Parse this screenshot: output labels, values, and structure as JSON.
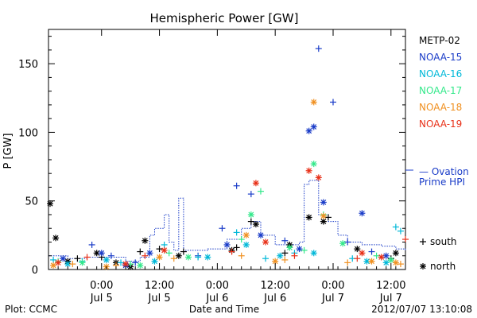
{
  "chart_data": {
    "type": "scatter",
    "title": "Hemispheric Power [GW]",
    "ylabel": "P [GW]",
    "xlabel": "Date and Time",
    "ylim": [
      0,
      175
    ],
    "yticks": [
      0,
      50,
      100,
      150
    ],
    "xlim": [
      "2012-07-04T13:00",
      "2012-07-07T15:00"
    ],
    "xticks": [
      {
        "at": "2012-07-05T00:00",
        "time": "0:00",
        "date": "Jul 5"
      },
      {
        "at": "2012-07-05T12:00",
        "time": "12:00",
        "date": "Jul 5"
      },
      {
        "at": "2012-07-06T00:00",
        "time": "0:00",
        "date": "Jul 6"
      },
      {
        "at": "2012-07-06T12:00",
        "time": "12:00",
        "date": "Jul 6"
      },
      {
        "at": "2012-07-07T00:00",
        "time": "0:00",
        "date": "Jul 7"
      },
      {
        "at": "2012-07-07T12:00",
        "time": "12:00",
        "date": "Jul 7"
      }
    ],
    "series": [
      {
        "name": "METP-02",
        "color": "#000000",
        "south": [
          [
            "2012-07-04T19:00",
            8
          ],
          [
            "2012-07-05T00:00",
            9
          ],
          [
            "2012-07-05T08:00",
            13
          ],
          [
            "2012-07-05T12:00",
            15
          ],
          [
            "2012-07-05T17:00",
            13
          ],
          [
            "2012-07-06T04:00",
            16
          ],
          [
            "2012-07-06T07:00",
            35
          ],
          [
            "2012-07-06T14:00",
            12
          ],
          [
            "2012-07-06T23:00",
            38
          ],
          [
            "2012-07-07T12:00",
            8
          ]
        ],
        "north": [
          [
            "2012-07-04T13:20",
            48
          ],
          [
            "2012-07-04T14:30",
            23
          ],
          [
            "2012-07-04T17:00",
            6
          ],
          [
            "2012-07-04T23:00",
            12
          ],
          [
            "2012-07-05T03:00",
            5
          ],
          [
            "2012-07-05T06:00",
            2
          ],
          [
            "2012-07-05T09:00",
            21
          ],
          [
            "2012-07-05T16:00",
            10
          ],
          [
            "2012-07-06T03:00",
            14
          ],
          [
            "2012-07-06T08:00",
            33
          ],
          [
            "2012-07-06T15:00",
            18
          ],
          [
            "2012-07-06T19:00",
            38
          ],
          [
            "2012-07-06T22:00",
            35
          ],
          [
            "2012-07-07T05:00",
            15
          ],
          [
            "2012-07-07T13:00",
            12
          ]
        ]
      },
      {
        "name": "NOAA-15",
        "color": "#1a3cc8",
        "south": [
          [
            "2012-07-04T22:00",
            18
          ],
          [
            "2012-07-05T02:00",
            10
          ],
          [
            "2012-07-05T07:00",
            5
          ],
          [
            "2012-07-05T20:00",
            10
          ],
          [
            "2012-07-06T01:00",
            30
          ],
          [
            "2012-07-06T04:00",
            61
          ],
          [
            "2012-07-06T07:00",
            55
          ],
          [
            "2012-07-06T14:00",
            21
          ],
          [
            "2012-07-06T21:00",
            161
          ],
          [
            "2012-07-07T00:00",
            122
          ],
          [
            "2012-07-07T03:00",
            20
          ],
          [
            "2012-07-07T08:00",
            13
          ]
        ],
        "north": [
          [
            "2012-07-04T16:00",
            8
          ],
          [
            "2012-07-05T00:00",
            12
          ],
          [
            "2012-07-05T05:00",
            3
          ],
          [
            "2012-07-05T10:00",
            12
          ],
          [
            "2012-07-06T02:00",
            18
          ],
          [
            "2012-07-06T09:00",
            25
          ],
          [
            "2012-07-06T17:00",
            15
          ],
          [
            "2012-07-06T19:00",
            101
          ],
          [
            "2012-07-06T20:00",
            104
          ],
          [
            "2012-07-06T22:00",
            49
          ],
          [
            "2012-07-07T06:00",
            41
          ],
          [
            "2012-07-07T11:00",
            10
          ]
        ]
      },
      {
        "name": "NOAA-16",
        "color": "#00b8d8",
        "south": [
          [
            "2012-07-04T14:00",
            7
          ],
          [
            "2012-07-04T20:00",
            6
          ],
          [
            "2012-07-05T04:00",
            5
          ],
          [
            "2012-07-05T13:00",
            18
          ],
          [
            "2012-07-05T20:00",
            9
          ],
          [
            "2012-07-06T04:00",
            27
          ],
          [
            "2012-07-06T10:00",
            8
          ],
          [
            "2012-07-06T16:00",
            12
          ],
          [
            "2012-07-07T04:00",
            8
          ],
          [
            "2012-07-07T13:00",
            31
          ],
          [
            "2012-07-07T14:00",
            28
          ]
        ],
        "north": [
          [
            "2012-07-04T17:00",
            4
          ],
          [
            "2012-07-05T01:00",
            7
          ],
          [
            "2012-07-05T11:00",
            6
          ],
          [
            "2012-07-05T22:00",
            9
          ],
          [
            "2012-07-06T06:00",
            18
          ],
          [
            "2012-07-06T13:00",
            10
          ],
          [
            "2012-07-06T20:00",
            12
          ],
          [
            "2012-07-07T07:00",
            6
          ],
          [
            "2012-07-07T11:00",
            5
          ]
        ]
      },
      {
        "name": "NOAA-17",
        "color": "#33e88a",
        "south": [
          [
            "2012-07-04T15:00",
            6
          ],
          [
            "2012-07-05T06:00",
            4
          ],
          [
            "2012-07-05T14:00",
            12
          ],
          [
            "2012-07-06T05:00",
            22
          ],
          [
            "2012-07-06T09:00",
            57
          ],
          [
            "2012-07-06T18:00",
            14
          ],
          [
            "2012-07-06T22:00",
            40
          ],
          [
            "2012-07-07T09:00",
            10
          ]
        ],
        "north": [
          [
            "2012-07-04T20:00",
            5
          ],
          [
            "2012-07-05T08:00",
            3
          ],
          [
            "2012-07-05T18:00",
            9
          ],
          [
            "2012-07-06T07:00",
            40
          ],
          [
            "2012-07-06T15:00",
            16
          ],
          [
            "2012-07-06T20:00",
            77
          ],
          [
            "2012-07-07T02:00",
            19
          ],
          [
            "2012-07-07T12:00",
            7
          ]
        ]
      },
      {
        "name": "NOAA-18",
        "color": "#f09020",
        "south": [
          [
            "2012-07-04T18:00",
            4
          ],
          [
            "2012-07-05T03:00",
            3
          ],
          [
            "2012-07-05T15:00",
            8
          ],
          [
            "2012-07-06T05:00",
            10
          ],
          [
            "2012-07-06T14:00",
            7
          ],
          [
            "2012-07-07T03:00",
            5
          ],
          [
            "2012-07-07T14:00",
            4
          ]
        ],
        "north": [
          [
            "2012-07-04T14:00",
            3
          ],
          [
            "2012-07-05T01:00",
            2
          ],
          [
            "2012-07-05T12:00",
            9
          ],
          [
            "2012-07-06T06:00",
            25
          ],
          [
            "2012-07-06T12:00",
            6
          ],
          [
            "2012-07-06T20:00",
            122
          ],
          [
            "2012-07-06T22:00",
            39
          ],
          [
            "2012-07-07T08:00",
            6
          ],
          [
            "2012-07-07T13:00",
            5
          ]
        ]
      },
      {
        "name": "NOAA-19",
        "color": "#e83018",
        "south": [
          [
            "2012-07-04T21:00",
            9
          ],
          [
            "2012-07-05T09:00",
            10
          ],
          [
            "2012-07-06T03:00",
            13
          ],
          [
            "2012-07-06T16:00",
            10
          ],
          [
            "2012-07-07T05:00",
            8
          ],
          [
            "2012-07-07T15:00",
            22
          ]
        ],
        "north": [
          [
            "2012-07-04T15:00",
            5
          ],
          [
            "2012-07-05T05:00",
            4
          ],
          [
            "2012-07-05T13:00",
            14
          ],
          [
            "2012-07-06T08:00",
            63
          ],
          [
            "2012-07-06T10:00",
            20
          ],
          [
            "2012-07-06T19:00",
            72
          ],
          [
            "2012-07-06T21:00",
            67
          ],
          [
            "2012-07-07T06:00",
            12
          ],
          [
            "2012-07-07T10:00",
            9
          ]
        ]
      }
    ],
    "hpi": {
      "name": "— Ovation Prime HPI",
      "color": "#1a3cc8",
      "points": [
        [
          "2012-07-04T13:00",
          10
        ],
        [
          "2012-07-04T17:00",
          8
        ],
        [
          "2012-07-04T21:00",
          9
        ],
        [
          "2012-07-05T01:00",
          9
        ],
        [
          "2012-07-05T05:00",
          6
        ],
        [
          "2012-07-05T08:00",
          9
        ],
        [
          "2012-07-05T10:00",
          25
        ],
        [
          "2012-07-05T11:00",
          30
        ],
        [
          "2012-07-05T13:00",
          40
        ],
        [
          "2012-07-05T14:00",
          20
        ],
        [
          "2012-07-05T15:00",
          14
        ],
        [
          "2012-07-05T16:00",
          52
        ],
        [
          "2012-07-05T17:00",
          14
        ],
        [
          "2012-07-05T22:00",
          15
        ],
        [
          "2012-07-06T02:00",
          22
        ],
        [
          "2012-07-06T05:00",
          30
        ],
        [
          "2012-07-06T07:00",
          35
        ],
        [
          "2012-07-06T09:00",
          25
        ],
        [
          "2012-07-06T12:00",
          18
        ],
        [
          "2012-07-06T17:00",
          20
        ],
        [
          "2012-07-06T18:00",
          62
        ],
        [
          "2012-07-06T19:00",
          65
        ],
        [
          "2012-07-06T21:00",
          40
        ],
        [
          "2012-07-06T23:00",
          35
        ],
        [
          "2012-07-07T01:00",
          25
        ],
        [
          "2012-07-07T03:00",
          20
        ],
        [
          "2012-07-07T06:00",
          18
        ],
        [
          "2012-07-07T10:00",
          17
        ],
        [
          "2012-07-07T13:00",
          15
        ],
        [
          "2012-07-07T15:00",
          14
        ]
      ]
    },
    "markers": [
      {
        "symbol": "+",
        "label": "south"
      },
      {
        "symbol": "*",
        "label": "north"
      }
    ]
  },
  "legend": {
    "hpi_line1": "— Ovation",
    "hpi_line2": "Prime HPI"
  },
  "footer": {
    "left": "Plot: CCMC",
    "center": "Date and Time",
    "right": "2012/07/07 13:10:08"
  }
}
